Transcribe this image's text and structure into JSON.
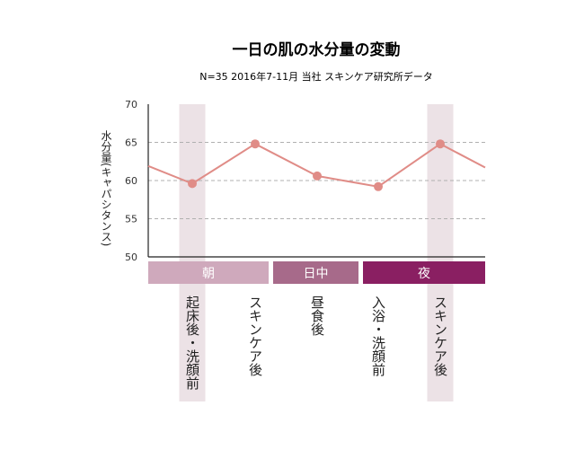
{
  "chart_data": {
    "type": "line",
    "title": "一日の肌の水分量の変動",
    "subtitle": "N=35  2016年7-11月  当社 スキンケア研究所データ",
    "ylabel": "水分量(キャパシタンス)",
    "ylim": [
      50,
      70
    ],
    "yticks": [
      "50",
      "55",
      "60",
      "65",
      "70"
    ],
    "grid": "dashed-horizontal",
    "categories": [
      "起床後・洗顔前",
      "スキンケア後",
      "昼食後",
      "入浴・洗顔前",
      "スキンケア後"
    ],
    "values": [
      59.6,
      64.8,
      60.6,
      59.2,
      64.8
    ],
    "line_start_value": 61.9,
    "line_end_value": 61.7,
    "highlighted_categories": [
      0,
      4
    ],
    "periods": [
      {
        "label": "朝",
        "color": "#cfa9bc"
      },
      {
        "label": "日中",
        "color": "#a76a8a"
      },
      {
        "label": "夜",
        "color": "#8a1f62"
      }
    ],
    "colors": {
      "line": "#e08c87",
      "highlight_band": "#ece2e6",
      "grid": "#b0b0b0"
    }
  }
}
